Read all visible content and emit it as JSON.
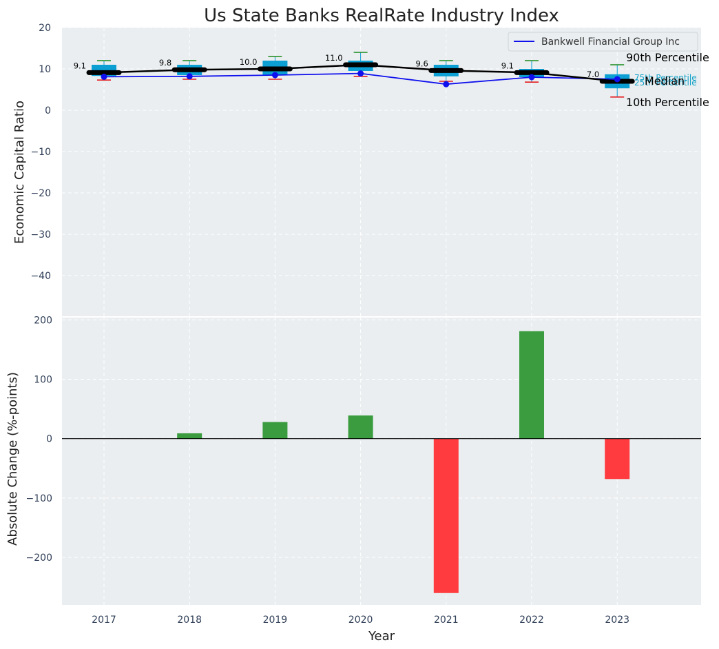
{
  "colors": {
    "panel_bg": "#eaeef0",
    "grid": "#ffffff",
    "box_fill": "#0b9fd3",
    "whisker_high": "#1a8a1a",
    "whisker_low": "#e31a1c",
    "company_line": "#1010ee",
    "median_line": "#000000",
    "bar_positive": "#3a9c3e",
    "bar_negative": "#ff3b3f",
    "zero_line": "#000000",
    "tick_text": "#2f3e57"
  },
  "chart_data": [
    {
      "type": "box",
      "title": "Us State Banks RealRate Industry Index",
      "xlabel": "Year",
      "ylabel": "Economic Capital Ratio",
      "categories": [
        "2017",
        "2018",
        "2019",
        "2020",
        "2021",
        "2022",
        "2023"
      ],
      "ylim": [
        -50,
        20
      ],
      "yticks": [
        20,
        10,
        0,
        -10,
        -20,
        -30,
        -40
      ],
      "grid": true,
      "percentiles": {
        "p10": [
          7.3,
          7.5,
          7.5,
          8.2,
          7.0,
          6.8,
          3.2
        ],
        "p25": [
          8.3,
          8.5,
          8.5,
          9.5,
          8.2,
          8.0,
          5.3
        ],
        "median": [
          9.1,
          9.8,
          10.0,
          11.0,
          9.6,
          9.1,
          7.0
        ],
        "p75": [
          11.0,
          11.0,
          12.0,
          12.0,
          11.0,
          10.0,
          8.7
        ],
        "p90": [
          12.0,
          12.0,
          13.0,
          14.0,
          12.0,
          12.0,
          11.0
        ]
      },
      "median_labels": [
        "9.1",
        "9.8",
        "10.0",
        "11.0",
        "9.6",
        "9.1",
        "7.0"
      ],
      "series": [
        {
          "name": "Bankwell Financial Group Inc",
          "values": [
            8.1,
            8.2,
            8.5,
            8.9,
            6.3,
            8.0,
            7.5
          ]
        }
      ],
      "legend": {
        "position": "top-right",
        "entries": [
          "Bankwell Financial Group Inc"
        ]
      },
      "annotations": {
        "p90": "90th Percentile",
        "p75": "75th Percentile",
        "median": "Median",
        "p25": "25th Percentile",
        "p10": "10th Percentile"
      }
    },
    {
      "type": "bar",
      "xlabel": "Year",
      "ylabel": "Absolute Change (%-points)",
      "categories": [
        "2017",
        "2018",
        "2019",
        "2020",
        "2021",
        "2022",
        "2023"
      ],
      "values": [
        0,
        9,
        28,
        39,
        -260,
        181,
        -68
      ],
      "ylim": [
        -280,
        205
      ],
      "yticks": [
        200,
        100,
        0,
        -100,
        -200
      ],
      "grid": true
    }
  ]
}
